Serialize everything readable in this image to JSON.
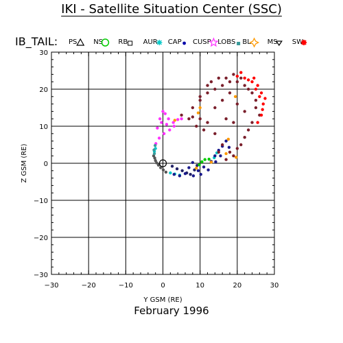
{
  "title": "IKI - Satellite Situation Center (SSC)",
  "footer": "February    1996",
  "legend": {
    "heading": "IB_TAIL:",
    "entries": [
      {
        "label": "PS",
        "symbol": "triangle-up",
        "color": "#000000"
      },
      {
        "label": "NS",
        "symbol": "circle",
        "color": "#00cc00"
      },
      {
        "label": "RB",
        "symbol": "square",
        "color": "#000000"
      },
      {
        "label": "AUR",
        "symbol": "asterisk",
        "color": "#00c8c8"
      },
      {
        "label": "CAP",
        "symbol": "dot",
        "color": "#0000aa"
      },
      {
        "label": "CUSP",
        "symbol": "star",
        "color": "#ff33ff"
      },
      {
        "label": "LOBS",
        "symbol": "small-square",
        "color": "#3a9a9a"
      },
      {
        "label": "BL",
        "symbol": "diamond-star",
        "color": "#ff9900"
      },
      {
        "label": "MS",
        "symbol": "triangle-down",
        "color": "#000000"
      },
      {
        "label": "SW",
        "symbol": "burst",
        "color": "#ff0000"
      }
    ]
  },
  "chart_data": {
    "type": "scatter",
    "xlabel": "Y GSM (RE)",
    "ylabel": "Z GSM (RE)",
    "xlim": [
      -30,
      30
    ],
    "ylim": [
      -30,
      30
    ],
    "xticks": [
      -30,
      -20,
      -10,
      0,
      10,
      20,
      30
    ],
    "yticks": [
      -30,
      -20,
      -10,
      0,
      10,
      20,
      30
    ],
    "xtick_labels": [
      "−30",
      "−20",
      "−10",
      "0",
      "10",
      "20",
      "30"
    ],
    "ytick_labels": [
      "−30",
      "−20",
      "−10",
      "0",
      "10",
      "20",
      "30"
    ],
    "grid": true,
    "earth_marker": [
      0,
      0
    ],
    "series": [
      {
        "name": "PS",
        "color": "#222266",
        "points": [
          [
            2.5,
            -0.8
          ],
          [
            3.8,
            -1.5
          ],
          [
            5.2,
            -2.0
          ],
          [
            6.4,
            -2.6
          ],
          [
            7.4,
            -3.0
          ],
          [
            8.5,
            -1.8
          ],
          [
            9.2,
            -0.6
          ]
        ]
      },
      {
        "name": "NS",
        "color": "#00cc00",
        "points": [
          [
            9.8,
            -0.4
          ],
          [
            10.5,
            0.4
          ],
          [
            11.3,
            1.0
          ],
          [
            12.4,
            1.1
          ]
        ]
      },
      {
        "name": "RB",
        "color": "#555555",
        "points": [
          [
            -2.5,
            2.0
          ],
          [
            -2.2,
            1.4
          ],
          [
            -2.0,
            0.7
          ],
          [
            -1.7,
            0.1
          ],
          [
            -1.2,
            -0.5
          ],
          [
            -0.6,
            -1.2
          ],
          [
            0.1,
            -1.8
          ],
          [
            0.8,
            -2.4
          ]
        ]
      },
      {
        "name": "AUR",
        "color": "#00c8c8",
        "points": [
          [
            -2.0,
            4.0
          ],
          [
            -2.3,
            3.2
          ],
          [
            2.0,
            -2.6
          ],
          [
            3.2,
            -2.9
          ],
          [
            4.5,
            -3.2
          ],
          [
            13.8,
            1.5
          ],
          [
            14.5,
            2.8
          ]
        ]
      },
      {
        "name": "CAP",
        "color": "#1a1a8c",
        "points": [
          [
            3,
            -3
          ],
          [
            4.5,
            -3.4
          ],
          [
            6,
            -2.8
          ],
          [
            7,
            -1.2
          ],
          [
            8,
            0.2
          ],
          [
            9.5,
            -2
          ],
          [
            11,
            -1
          ],
          [
            13,
            0.5
          ],
          [
            14,
            2
          ],
          [
            15,
            3.5
          ],
          [
            16,
            4.6
          ],
          [
            15.5,
            2
          ],
          [
            14.2,
            0.4
          ],
          [
            12.2,
            -1.8
          ],
          [
            10.2,
            -3
          ],
          [
            8.2,
            -3.4
          ],
          [
            17,
            6
          ],
          [
            17.8,
            4.3
          ]
        ]
      },
      {
        "name": "CUSP",
        "color": "#ff33ff",
        "points": [
          [
            -1.5,
            9.5
          ],
          [
            -0.8,
            12
          ],
          [
            0,
            14
          ],
          [
            1.5,
            12
          ],
          [
            2.8,
            11
          ],
          [
            4,
            11.8
          ],
          [
            3,
            10
          ],
          [
            1.8,
            9
          ],
          [
            0.3,
            8
          ],
          [
            -1,
            6.8
          ],
          [
            -1.9,
            5.3
          ],
          [
            5,
            12
          ],
          [
            1,
            10.5
          ],
          [
            -0.4,
            11
          ],
          [
            0.6,
            13.4
          ]
        ]
      },
      {
        "name": "LOBS",
        "color": "#3a9a9a",
        "points": [
          [
            -2.1,
            4.8
          ],
          [
            -2.4,
            3.6
          ],
          [
            -2.3,
            2.6
          ]
        ]
      },
      {
        "name": "BL",
        "color": "#ff9900",
        "points": [
          [
            9,
            -1.3
          ],
          [
            13,
            0.3
          ],
          [
            17,
            2.6
          ],
          [
            17.6,
            6.5
          ],
          [
            19.5,
            18
          ],
          [
            10,
            15
          ],
          [
            3.2,
            11.6
          ],
          [
            9.5,
            13.6
          ],
          [
            19.7,
            1.6
          ]
        ]
      },
      {
        "name": "MS",
        "color": "#7a1f2b",
        "points": [
          [
            5,
            13
          ],
          [
            8,
            15
          ],
          [
            10,
            17
          ],
          [
            12,
            19
          ],
          [
            14,
            20
          ],
          [
            16,
            21
          ],
          [
            18,
            22
          ],
          [
            20,
            22
          ],
          [
            22,
            21
          ],
          [
            24,
            19
          ],
          [
            25,
            15
          ],
          [
            24,
            11
          ],
          [
            22,
            7
          ],
          [
            20,
            4
          ],
          [
            18,
            3
          ],
          [
            16,
            5
          ],
          [
            14,
            8
          ],
          [
            12,
            11
          ],
          [
            10,
            12
          ],
          [
            8,
            12.5
          ],
          [
            12,
            21
          ],
          [
            10,
            18
          ],
          [
            13,
            22
          ],
          [
            15,
            23
          ],
          [
            17,
            23
          ],
          [
            19,
            24
          ],
          [
            21,
            23
          ],
          [
            23,
            20
          ],
          [
            25,
            17
          ],
          [
            26,
            13
          ],
          [
            23,
            9
          ],
          [
            21,
            5
          ],
          [
            19,
            2
          ],
          [
            17,
            1
          ],
          [
            15,
            3
          ],
          [
            11,
            9
          ],
          [
            9,
            10
          ],
          [
            7,
            12
          ],
          [
            18,
            19
          ],
          [
            16,
            17
          ],
          [
            14,
            15
          ],
          [
            20,
            16
          ],
          [
            22,
            14
          ],
          [
            19,
            11
          ],
          [
            17,
            12
          ]
        ]
      },
      {
        "name": "SW",
        "color": "#ff0000",
        "points": [
          [
            20,
            23.5
          ],
          [
            22,
            23
          ],
          [
            24,
            22
          ],
          [
            25.5,
            21
          ],
          [
            26.5,
            19
          ],
          [
            27,
            16
          ],
          [
            26.5,
            13
          ],
          [
            25.5,
            11
          ],
          [
            23,
            22.5
          ],
          [
            25,
            20
          ],
          [
            26,
            18
          ],
          [
            24.5,
            23
          ],
          [
            21,
            24.5
          ],
          [
            27.5,
            17.5
          ],
          [
            26.8,
            14.5
          ]
        ]
      }
    ]
  }
}
